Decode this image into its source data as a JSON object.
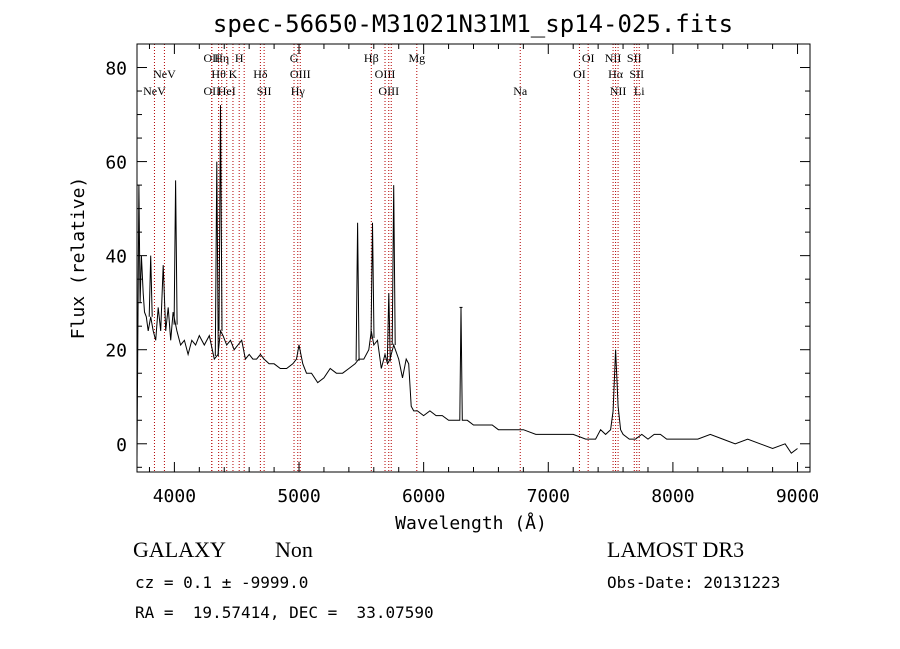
{
  "chart_data": {
    "type": "line",
    "title": "spec-56650-M31021N31M1_sp14-025.fits",
    "xlabel": "Wavelength (Å)",
    "ylabel": "Flux (relative)",
    "xlim": [
      3700,
      9100
    ],
    "ylim": [
      -6,
      85
    ],
    "x_ticks": [
      4000,
      5000,
      6000,
      7000,
      8000,
      9000
    ],
    "y_ticks": [
      0,
      20,
      40,
      60,
      80
    ],
    "grid": false,
    "series": [
      {
        "x": [
          3700,
          3715,
          3725,
          3735,
          3750,
          3760,
          3775,
          3790,
          3810,
          3830,
          3850,
          3870,
          3890,
          3910,
          3930,
          3950,
          3970,
          3990,
          4020,
          4050,
          4080,
          4110,
          4140,
          4170,
          4200,
          4240,
          4280,
          4320,
          4350,
          4370,
          4390,
          4420,
          4450,
          4480,
          4510,
          4540,
          4570,
          4600,
          4630,
          4660,
          4690,
          4720,
          4760,
          4800,
          4850,
          4900,
          4950,
          4980,
          5000,
          5030,
          5060,
          5100,
          5150,
          5200,
          5250,
          5300,
          5350,
          5400,
          5450,
          5480,
          5520,
          5560,
          5580,
          5600,
          5630,
          5660,
          5690,
          5710,
          5730,
          5760,
          5800,
          5830,
          5860,
          5880,
          5900,
          5920,
          5950,
          6000,
          6050,
          6100,
          6150,
          6200,
          6250,
          6290,
          6300,
          6310,
          6350,
          6400,
          6500,
          6550,
          6600,
          6700,
          6800,
          6900,
          7000,
          7100,
          7200,
          7300,
          7380,
          7420,
          7460,
          7500,
          7520,
          7540,
          7560,
          7580,
          7600,
          7650,
          7700,
          7750,
          7800,
          7850,
          7900,
          7950,
          8000,
          8100,
          8200,
          8300,
          8400,
          8500,
          8600,
          8700,
          8800,
          8900,
          8950,
          9000
        ],
        "values": [
          -3,
          55,
          30,
          40,
          32,
          28,
          27,
          24,
          27,
          24,
          22,
          29,
          24,
          38,
          24,
          29,
          22,
          28,
          24,
          21,
          22,
          19,
          22,
          21,
          23,
          21,
          23,
          18,
          19,
          24,
          23,
          21,
          22,
          20,
          21,
          22,
          18,
          19,
          18,
          18,
          19,
          18,
          17,
          17,
          16,
          16,
          17,
          18,
          21,
          17,
          15,
          15,
          13,
          14,
          16,
          15,
          15,
          16,
          17,
          18,
          18,
          20,
          24,
          21,
          22,
          16,
          19,
          17,
          18,
          21,
          18,
          14,
          18,
          17,
          8,
          7,
          7,
          6,
          7,
          6,
          6,
          5,
          5,
          5,
          29,
          5,
          5,
          4,
          4,
          4,
          3,
          3,
          3,
          2,
          2,
          2,
          2,
          1,
          1,
          3,
          2,
          3,
          7,
          20,
          8,
          3,
          2,
          1,
          1,
          2,
          1,
          2,
          2,
          1,
          1,
          1,
          1,
          2,
          1,
          0,
          1,
          0,
          -1,
          0,
          -2,
          -1
        ]
      }
    ],
    "spikes": [
      {
        "x": 3810,
        "y": 40
      },
      {
        "x": 4010,
        "y": 56
      },
      {
        "x": 4340,
        "y": 60
      },
      {
        "x": 4370,
        "y": 72
      },
      {
        "x": 5470,
        "y": 47
      },
      {
        "x": 5590,
        "y": 47
      },
      {
        "x": 5720,
        "y": 32
      },
      {
        "x": 5760,
        "y": 55
      },
      {
        "x": 6300,
        "y": 29
      }
    ],
    "line_markers": [
      {
        "x": 3840,
        "upper": "",
        "lower": "NeV",
        "row": 3
      },
      {
        "x": 3920,
        "upper": "NeV",
        "row": 2
      },
      {
        "x": 4300,
        "upper": "OII",
        "row": 1
      },
      {
        "x": 4300,
        "lower": "OII",
        "row": 3
      },
      {
        "x": 4355,
        "upper": "Hθ",
        "row": 2
      },
      {
        "x": 4380,
        "upper": "Hη",
        "row": 1
      },
      {
        "x": 4420,
        "lower": "HeI",
        "row": 3
      },
      {
        "x": 4470,
        "upper": "K",
        "row": 2
      },
      {
        "x": 4520,
        "upper": "H",
        "row": 1
      },
      {
        "x": 4560,
        "upper": "",
        "row": 0
      },
      {
        "x": 4690,
        "upper": "Hδ",
        "row": 2
      },
      {
        "x": 4720,
        "lower": "SII",
        "row": 3
      },
      {
        "x": 4960,
        "upper": "G",
        "row": 1
      },
      {
        "x": 4990,
        "lower": "Hγ",
        "row": 3
      },
      {
        "x": 5010,
        "upper": "OIII",
        "row": 2
      },
      {
        "x": 5580,
        "upper": "Hβ",
        "row": 1
      },
      {
        "x": 5690,
        "upper": "OIII",
        "row": 2
      },
      {
        "x": 5720,
        "lower": "OIII",
        "row": 3
      },
      {
        "x": 5740,
        "upper": "",
        "row": 0
      },
      {
        "x": 5945,
        "upper": "Mg",
        "row": 1
      },
      {
        "x": 6775,
        "lower": "Na",
        "row": 3
      },
      {
        "x": 7250,
        "upper": "OI",
        "row": 2
      },
      {
        "x": 7320,
        "upper": "OI",
        "row": 1
      },
      {
        "x": 7520,
        "upper": "NII",
        "row": 1
      },
      {
        "x": 7540,
        "upper": "Hα",
        "row": 2
      },
      {
        "x": 7560,
        "lower": "NII",
        "row": 3
      },
      {
        "x": 7690,
        "upper": "SII",
        "row": 1
      },
      {
        "x": 7710,
        "upper": "SII",
        "row": 2
      },
      {
        "x": 7730,
        "lower": "Li",
        "row": 3
      }
    ]
  },
  "footer": {
    "class_label": "GALAXY",
    "subclass_label": "Non",
    "survey_label": "LAMOST DR3",
    "cz_text": "cz = 0.1 ± -9999.0",
    "obs_date_text": "Obs-Date: 20131223",
    "coords_text": "RA =  19.57414, DEC =  33.07590"
  }
}
